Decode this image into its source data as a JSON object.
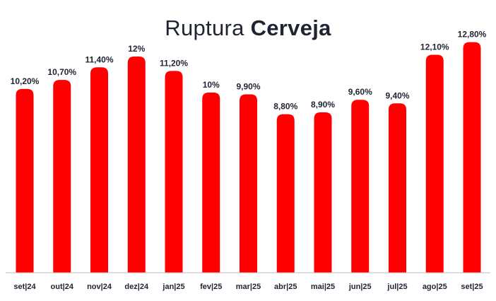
{
  "title": {
    "light": "Ruptura",
    "bold": "Cerveja"
  },
  "colors": {
    "bar": "#ff0000",
    "text": "#1f2433",
    "axis": "#bdbdbd"
  },
  "chart_data": {
    "type": "bar",
    "title": "Ruptura Cerveja",
    "categories": [
      "set|24",
      "out|24",
      "nov|24",
      "dez|24",
      "jan|25",
      "fev|25",
      "mar|25",
      "abr|25",
      "mai|25",
      "jun|25",
      "jul|25",
      "ago|25",
      "set|25"
    ],
    "values": [
      10.2,
      10.7,
      11.4,
      12.0,
      11.2,
      10.0,
      9.9,
      8.8,
      8.9,
      9.6,
      9.4,
      12.1,
      12.8
    ],
    "value_labels": [
      "10,20%",
      "10,70%",
      "11,40%",
      "12%",
      "11,20%",
      "10%",
      "9,90%",
      "8,80%",
      "8,90%",
      "9,60%",
      "9,40%",
      "12,10%",
      "12,80%"
    ],
    "xlabel": "",
    "ylabel": "",
    "grid": false,
    "legend": "none"
  }
}
